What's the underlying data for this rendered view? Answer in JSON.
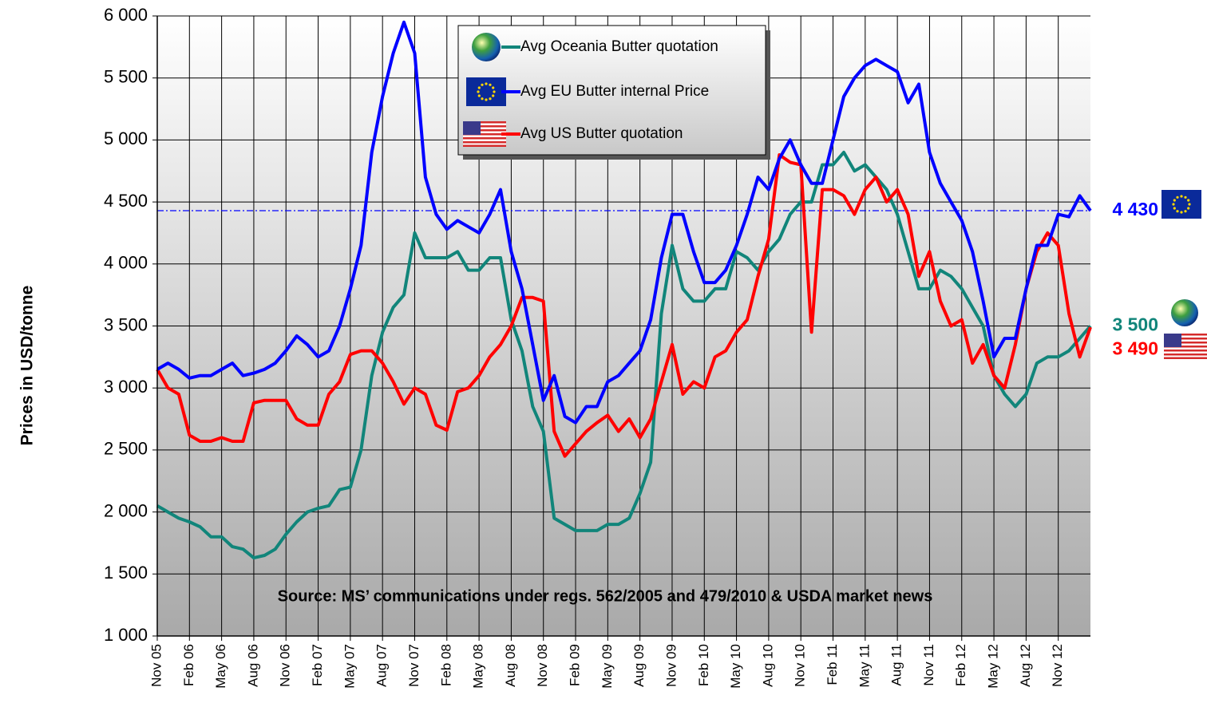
{
  "chart_data": {
    "type": "line",
    "ylabel": "Prices in USD/tonne",
    "annotation": "Source: MS’ communications  under regs. 562/2005 and 479/2010 & USDA market news",
    "categories": [
      "Nov 05",
      null,
      null,
      "Feb 06",
      null,
      null,
      "May 06",
      null,
      null,
      "Aug 06",
      null,
      null,
      "Nov 06",
      null,
      null,
      "Feb 07",
      null,
      null,
      "May 07",
      null,
      null,
      "Aug 07",
      null,
      null,
      "Nov 07",
      null,
      null,
      "Feb 08",
      null,
      null,
      "May 08",
      null,
      null,
      "Aug 08",
      null,
      null,
      "Nov 08",
      null,
      null,
      "Feb 09",
      null,
      null,
      "May 09",
      null,
      null,
      "Aug 09",
      null,
      null,
      "Nov 09",
      null,
      null,
      "Feb 10",
      null,
      null,
      "May 10",
      null,
      null,
      "Aug 10",
      null,
      null,
      "Nov 10",
      null,
      null,
      "Feb 11",
      null,
      null,
      "May 11",
      null,
      null,
      "Aug 11",
      null,
      null,
      "Nov 11",
      null,
      null,
      "Feb 12",
      null,
      null,
      "May 12",
      null,
      null,
      "Aug 12",
      null,
      null,
      "Nov 12",
      null,
      null,
      null
    ],
    "series": [
      {
        "name": "Avg Oceania Butter quotation",
        "color": "#11857a",
        "values": [
          2050,
          2000,
          1950,
          1920,
          1880,
          1800,
          1800,
          1720,
          1700,
          1630,
          1650,
          1700,
          1820,
          1920,
          2000,
          2030,
          2050,
          2180,
          2200,
          2500,
          3100,
          3450,
          3650,
          3750,
          4250,
          4050,
          4050,
          4050,
          4100,
          3950,
          3950,
          4050,
          4050,
          3550,
          3300,
          2850,
          2650,
          1950,
          1900,
          1850,
          1850,
          1850,
          1900,
          1900,
          1950,
          2150,
          2400,
          3600,
          4150,
          3800,
          3700,
          3700,
          3800,
          3800,
          4100,
          4050,
          3950,
          4100,
          4200,
          4400,
          4500,
          4500,
          4800,
          4800,
          4900,
          4750,
          4800,
          4700,
          4600,
          4400,
          4100,
          3800,
          3800,
          3950,
          3900,
          3800,
          3650,
          3500,
          3100,
          2950,
          2850,
          2950,
          3200,
          3250,
          3250,
          3300,
          3400,
          3500
        ]
      },
      {
        "name": "Avg EU Butter internal Price",
        "color": "#0000ff",
        "values": [
          3150,
          3200,
          3150,
          3080,
          3100,
          3100,
          3150,
          3200,
          3100,
          3120,
          3150,
          3200,
          3300,
          3420,
          3350,
          3250,
          3300,
          3500,
          3800,
          4150,
          4900,
          5350,
          5700,
          5950,
          5700,
          4700,
          4400,
          4280,
          4350,
          4300,
          4250,
          4400,
          4600,
          4100,
          3800,
          3350,
          2900,
          3100,
          2770,
          2720,
          2850,
          2850,
          3050,
          3100,
          3200,
          3300,
          3550,
          4050,
          4400,
          4400,
          4100,
          3850,
          3850,
          3950,
          4150,
          4400,
          4700,
          4600,
          4850,
          5000,
          4800,
          4650,
          4650,
          5000,
          5350,
          5500,
          5600,
          5650,
          5600,
          5550,
          5300,
          5450,
          4900,
          4650,
          4500,
          4350,
          4100,
          3700,
          3250,
          3400,
          3400,
          3800,
          4150,
          4150,
          4400,
          4380,
          4550,
          4430
        ]
      },
      {
        "name": "Avg US Butter quotation",
        "color": "#ff0000",
        "values": [
          3150,
          3000,
          2950,
          2620,
          2570,
          2570,
          2600,
          2570,
          2570,
          2880,
          2900,
          2900,
          2900,
          2750,
          2700,
          2700,
          2950,
          3050,
          3270,
          3300,
          3300,
          3200,
          3050,
          2870,
          3000,
          2950,
          2700,
          2660,
          2970,
          3000,
          3100,
          3250,
          3350,
          3500,
          3730,
          3730,
          3700,
          2650,
          2450,
          2550,
          2650,
          2720,
          2780,
          2650,
          2750,
          2600,
          2750,
          3050,
          3350,
          2950,
          3050,
          3000,
          3250,
          3300,
          3450,
          3550,
          3900,
          4200,
          4880,
          4820,
          4800,
          3450,
          4600,
          4600,
          4550,
          4400,
          4600,
          4700,
          4500,
          4600,
          4400,
          3900,
          4100,
          3700,
          3500,
          3550,
          3200,
          3350,
          3100,
          3000,
          3350,
          3800,
          4100,
          4250,
          4150,
          3600,
          3250,
          3490
        ]
      }
    ],
    "ylim": [
      1000,
      6000
    ],
    "yticks": [
      {
        "value": 1000,
        "label": "1 000"
      },
      {
        "value": 1500,
        "label": "1 500"
      },
      {
        "value": 2000,
        "label": "2 000"
      },
      {
        "value": 2500,
        "label": "2 500"
      },
      {
        "value": 3000,
        "label": "3 000"
      },
      {
        "value": 3500,
        "label": "3 500"
      },
      {
        "value": 4000,
        "label": "4 000"
      },
      {
        "value": 4500,
        "label": "4 500"
      },
      {
        "value": 5000,
        "label": "5 000"
      },
      {
        "value": 5500,
        "label": "5 500"
      },
      {
        "value": 6000,
        "label": "6 000"
      }
    ],
    "grid": true,
    "reference_line": {
      "value": 4430,
      "color": "#0000ff"
    },
    "end_labels": [
      {
        "label": "4 430",
        "value": 4430,
        "color": "#0000ff"
      },
      {
        "label": "3 500",
        "value": 3500,
        "color": "#11857a"
      },
      {
        "label": "3 490",
        "value": 3490,
        "color": "#ff0000"
      }
    ]
  }
}
